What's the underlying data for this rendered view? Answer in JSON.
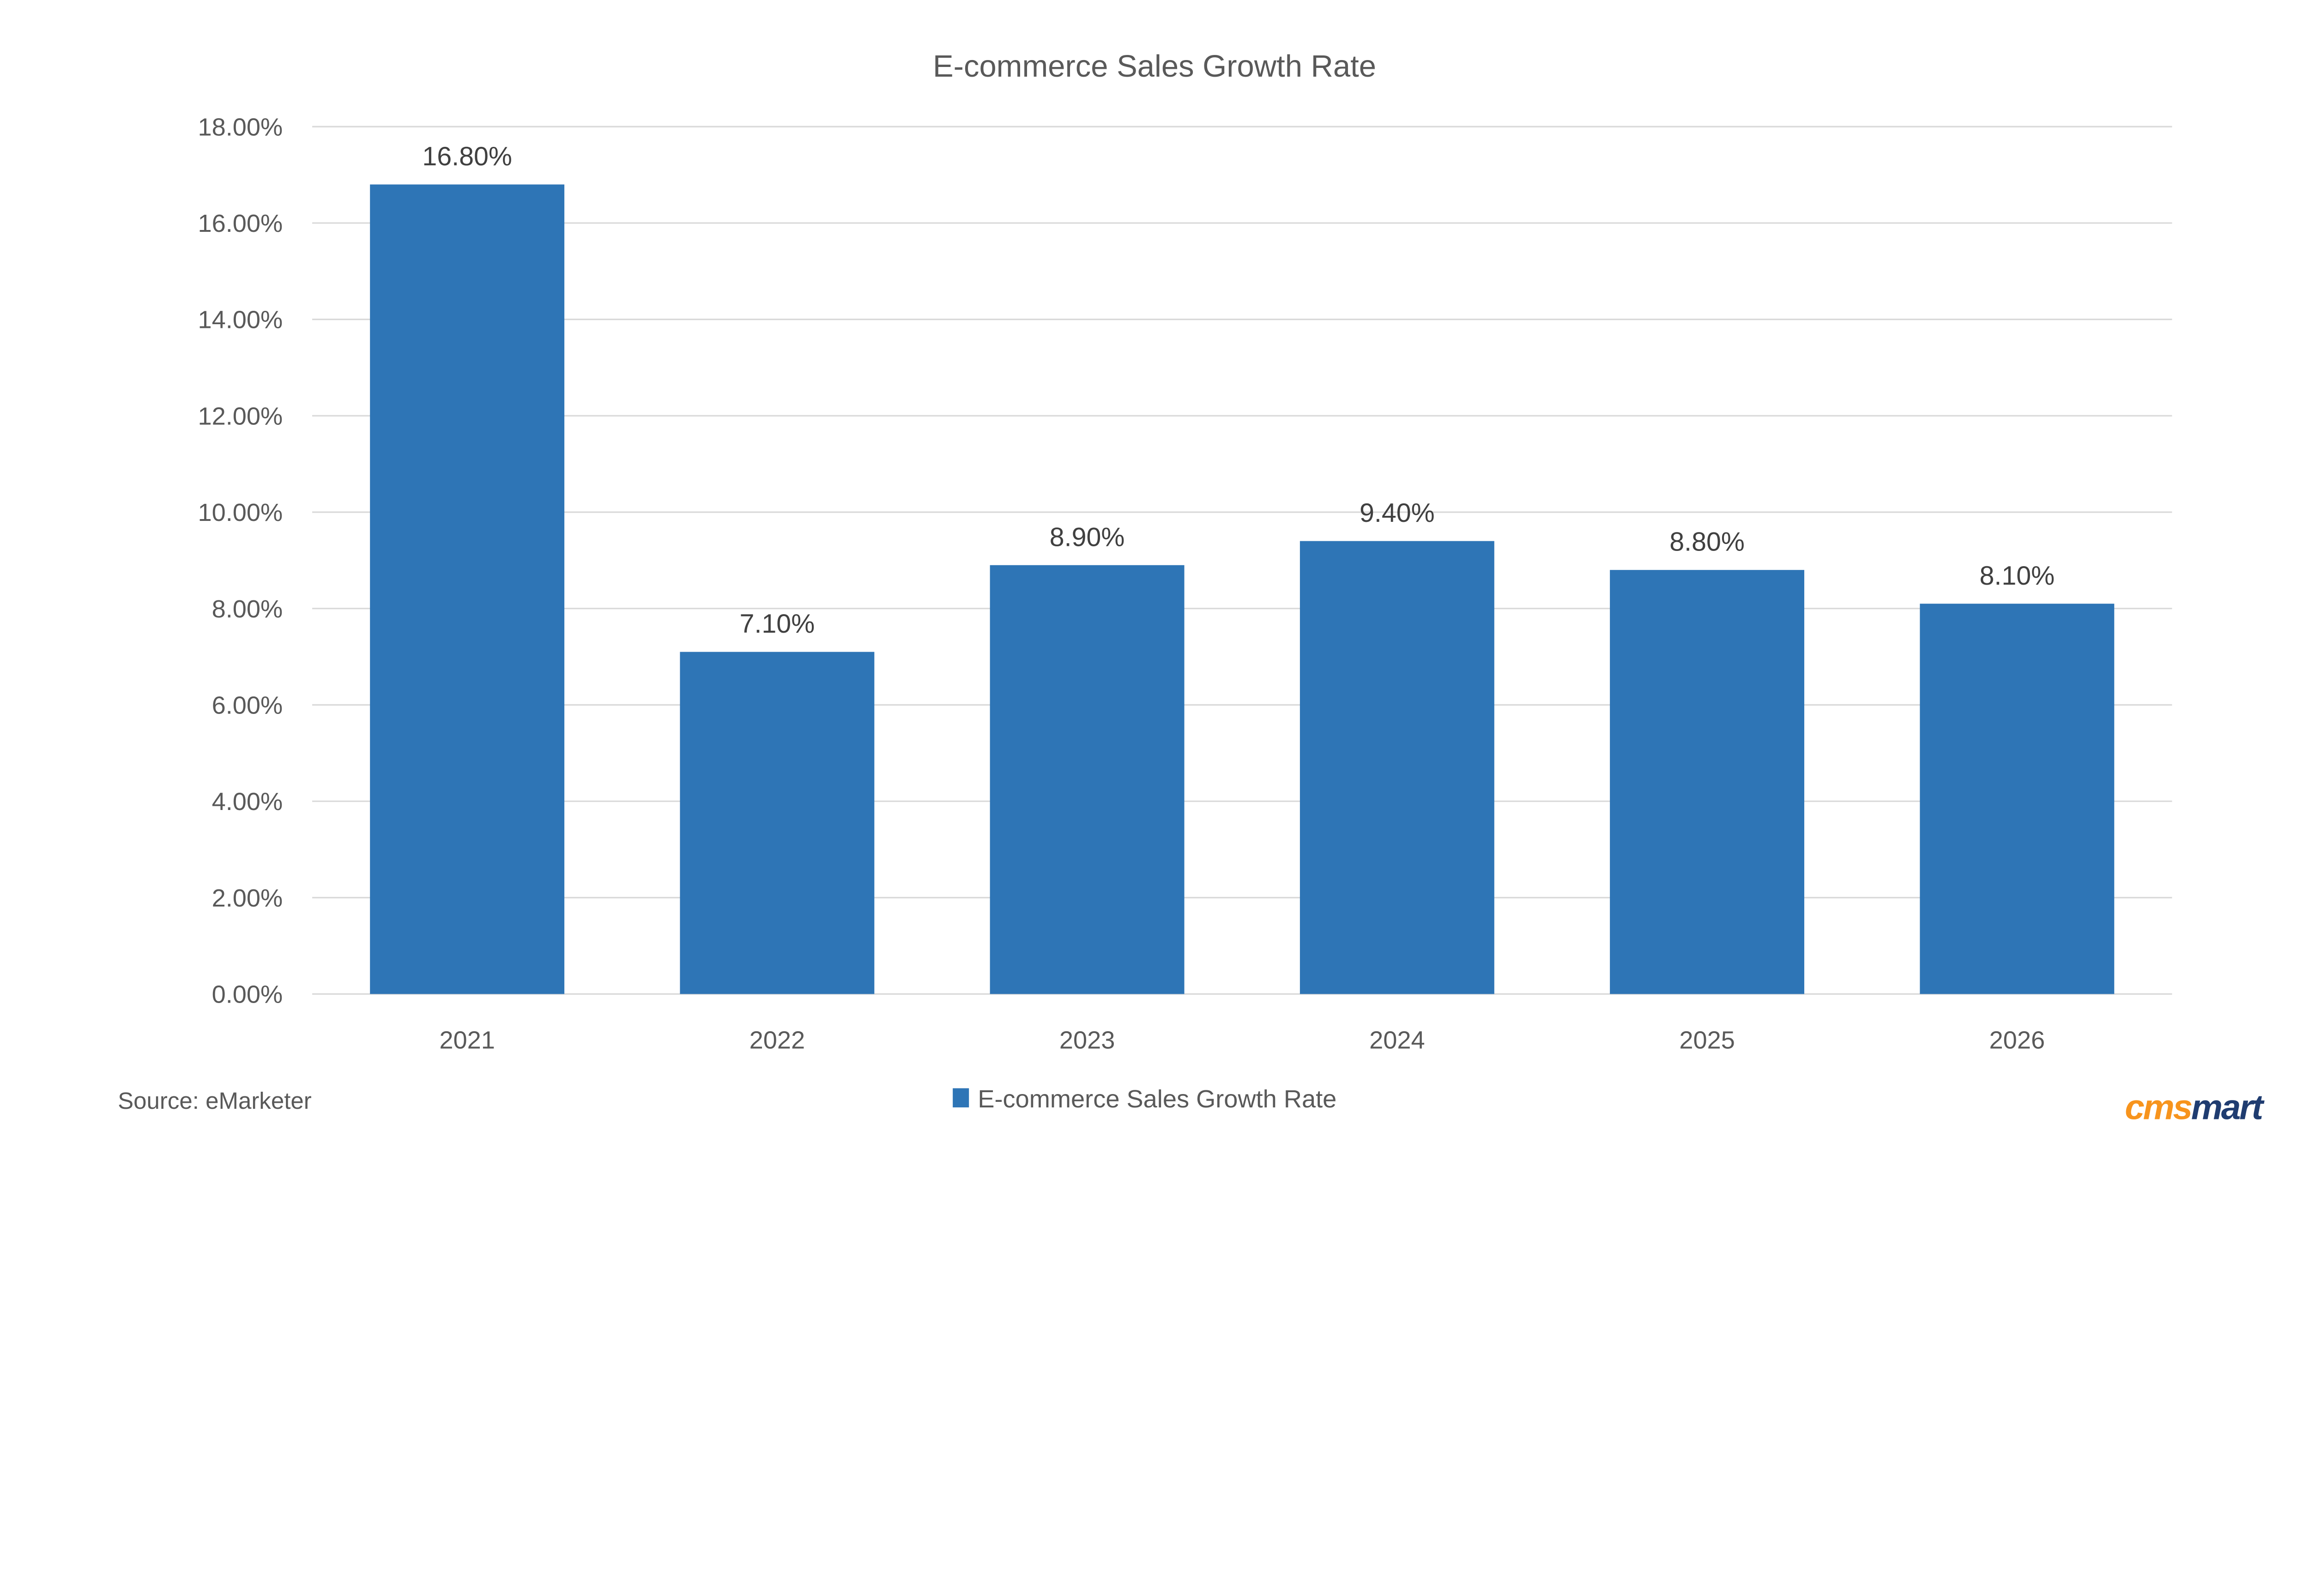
{
  "chart_data": {
    "type": "bar",
    "title": "E-commerce Sales Growth Rate",
    "categories": [
      "2021",
      "2022",
      "2023",
      "2024",
      "2025",
      "2026"
    ],
    "series": [
      {
        "name": "E-commerce Sales Growth Rate",
        "values": [
          16.8,
          7.1,
          8.9,
          9.4,
          8.8,
          8.1
        ],
        "color": "#2e75b6"
      }
    ],
    "data_labels": [
      "16.80%",
      "7.10%",
      "8.90%",
      "9.40%",
      "8.80%",
      "8.10%"
    ],
    "ylim": [
      0,
      18
    ],
    "yticks": [
      0,
      2,
      4,
      6,
      8,
      10,
      12,
      14,
      16,
      18
    ],
    "ytick_labels": [
      "0.00%",
      "2.00%",
      "4.00%",
      "6.00%",
      "8.00%",
      "10.00%",
      "12.00%",
      "14.00%",
      "16.00%",
      "18.00%"
    ],
    "xlabel": "",
    "ylabel": "",
    "grid": true,
    "legend": "bottom-center"
  },
  "source": "Source: eMarketer",
  "logo": {
    "text_orange": "cms",
    "text_blue": "mart",
    "orange": "#f7941d",
    "blue": "#1f3c70"
  }
}
